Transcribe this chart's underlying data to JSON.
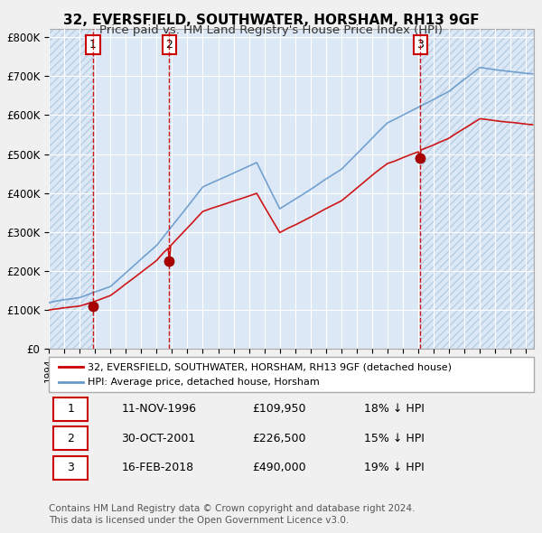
{
  "title1": "32, EVERSFIELD, SOUTHWATER, HORSHAM, RH13 9GF",
  "title2": "Price paid vs. HM Land Registry's House Price Index (HPI)",
  "bg_color": "#e8f0f8",
  "plot_bg_color": "#dce8f5",
  "hatch_color": "#c8d8e8",
  "red_line_color": "#cc0000",
  "blue_line_color": "#6699cc",
  "red_dot_color": "#aa0000",
  "vline_color": "#cc0000",
  "ylabel_prefix": "£",
  "ytick_labels": [
    "£0",
    "£100K",
    "£200K",
    "£300K",
    "£400K",
    "£500K",
    "£600K",
    "£700K",
    "£800K"
  ],
  "ytick_values": [
    0,
    100000,
    200000,
    300000,
    400000,
    500000,
    600000,
    700000,
    800000
  ],
  "xmin": 1994.0,
  "xmax": 2025.5,
  "ymin": 0,
  "ymax": 820000,
  "sale1_date": 1996.87,
  "sale1_price": 109950,
  "sale1_label": "1",
  "sale2_date": 2001.83,
  "sale2_price": 226500,
  "sale2_label": "2",
  "sale3_date": 2018.12,
  "sale3_price": 490000,
  "sale3_label": "3",
  "legend_red": "32, EVERSFIELD, SOUTHWATER, HORSHAM, RH13 9GF (detached house)",
  "legend_blue": "HPI: Average price, detached house, Horsham",
  "table_rows": [
    {
      "num": "1",
      "date": "11-NOV-1996",
      "price": "£109,950",
      "note": "18% ↓ HPI"
    },
    {
      "num": "2",
      "date": "30-OCT-2001",
      "price": "£226,500",
      "note": "15% ↓ HPI"
    },
    {
      "num": "3",
      "date": "16-FEB-2018",
      "price": "£490,000",
      "note": "19% ↓ HPI"
    }
  ],
  "footer1": "Contains HM Land Registry data © Crown copyright and database right 2024.",
  "footer2": "This data is licensed under the Open Government Licence v3.0."
}
